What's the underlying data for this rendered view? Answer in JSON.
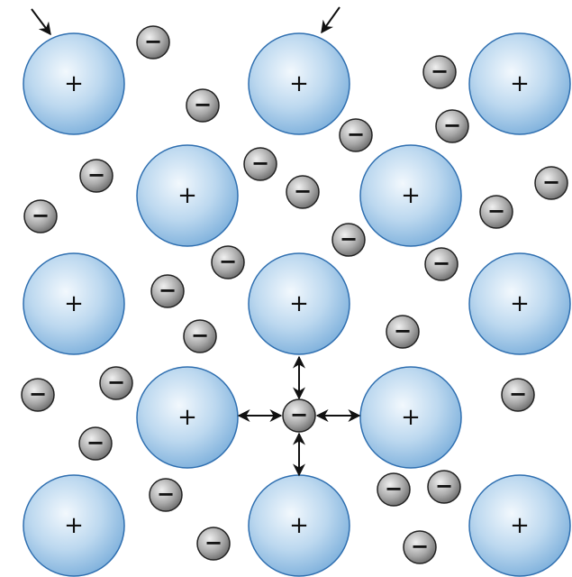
{
  "labels": {
    "cation": "+",
    "electron": "−"
  }
}
